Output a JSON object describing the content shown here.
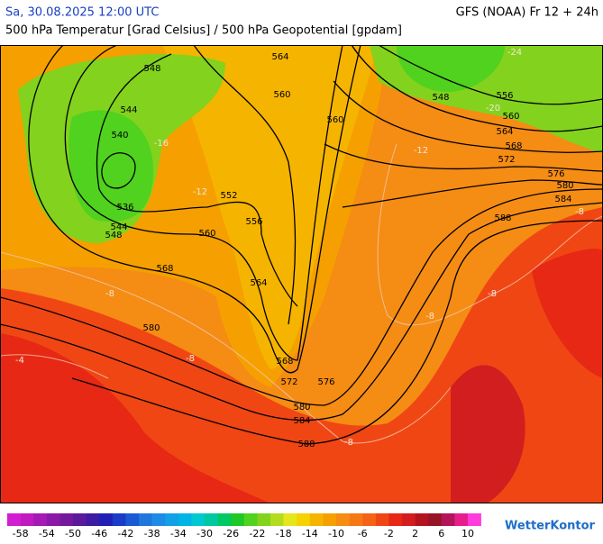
{
  "header": {
    "date": "Sa, 30.08.2025 12:00 UTC",
    "model": "GFS (NOAA) Fr 12 + 24h",
    "subtitle": "500 hPa Temperatur [Grad Celsius] / 500 hPa Geopotential [gpdam]"
  },
  "map": {
    "geopotential_labels": [
      548,
      564,
      544,
      560,
      540,
      560,
      536,
      552,
      544,
      548,
      556,
      560,
      568,
      564,
      580,
      568,
      572,
      576,
      580,
      584,
      588,
      548,
      556,
      560,
      564,
      568,
      572,
      576,
      580,
      584,
      588
    ],
    "temperature_labels": [
      -24,
      -20,
      -16,
      -12,
      -12,
      -8,
      -8,
      -8,
      -8,
      -4,
      -8,
      -8
    ]
  },
  "legend": {
    "colors": [
      "#d21ed2",
      "#c01ac0",
      "#a519b4",
      "#8c18a8",
      "#74189c",
      "#5a1a9a",
      "#3c1ca0",
      "#2020b4",
      "#1a3cc8",
      "#1a5ad2",
      "#1e78dc",
      "#1e8ce6",
      "#14a0e6",
      "#00b4e6",
      "#00c8d2",
      "#00c8a0",
      "#00c864",
      "#1ec828",
      "#50d21e",
      "#82d21e",
      "#b4dc1e",
      "#e6e61e",
      "#f5d200",
      "#f5b400",
      "#f5a000",
      "#f58c14",
      "#f57814",
      "#f56414",
      "#f04614",
      "#e62814",
      "#d21e1e",
      "#b4141e",
      "#961428",
      "#b4145a",
      "#e61e8c",
      "#ff3cdc"
    ],
    "labels": [
      -58,
      -54,
      -50,
      -46,
      -42,
      -38,
      -34,
      -30,
      -26,
      -22,
      -18,
      -14,
      -10,
      -6,
      -2,
      2,
      6,
      10
    ]
  },
  "logo": "WetterKontor"
}
